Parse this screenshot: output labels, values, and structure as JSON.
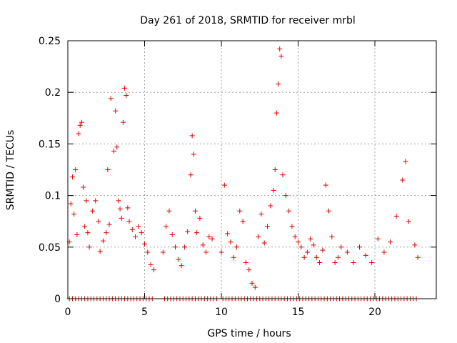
{
  "chart_data": {
    "type": "scatter",
    "title": "Day 261 of 2018, SRMTID for receiver mrbl",
    "xlabel": "GPS time / hours",
    "ylabel": "SRMTID / TECUs",
    "xlim": [
      0,
      24
    ],
    "ylim": [
      0,
      0.25
    ],
    "x_ticks": [
      0,
      5,
      10,
      15,
      20
    ],
    "x_tick_labels": [
      "0",
      "5",
      "10",
      "15",
      "20"
    ],
    "y_ticks": [
      0,
      0.05,
      0.1,
      0.15,
      0.2,
      0.25
    ],
    "y_tick_labels": [
      "0",
      "0.05",
      "0.1",
      "0.15",
      "0.2",
      "0.25"
    ],
    "grid": true,
    "marker": "+",
    "color": "#e00000",
    "series": [
      {
        "name": "SRMTID",
        "points": [
          [
            0.1,
            0.055
          ],
          [
            0.2,
            0.092
          ],
          [
            0.3,
            0.118
          ],
          [
            0.4,
            0.082
          ],
          [
            0.5,
            0.125
          ],
          [
            0.6,
            0.062
          ],
          [
            0.7,
            0.16
          ],
          [
            0.8,
            0.168
          ],
          [
            0.9,
            0.171
          ],
          [
            1.0,
            0.108
          ],
          [
            1.1,
            0.07
          ],
          [
            1.2,
            0.095
          ],
          [
            1.3,
            0.064
          ],
          [
            1.4,
            0.05
          ],
          [
            1.6,
            0.085
          ],
          [
            1.8,
            0.095
          ],
          [
            2.0,
            0.075
          ],
          [
            2.1,
            0.046
          ],
          [
            2.3,
            0.056
          ],
          [
            2.5,
            0.064
          ],
          [
            2.6,
            0.125
          ],
          [
            2.7,
            0.072
          ],
          [
            2.8,
            0.194
          ],
          [
            3.0,
            0.143
          ],
          [
            3.1,
            0.182
          ],
          [
            3.2,
            0.147
          ],
          [
            3.3,
            0.095
          ],
          [
            3.4,
            0.087
          ],
          [
            3.5,
            0.078
          ],
          [
            3.6,
            0.171
          ],
          [
            3.7,
            0.204
          ],
          [
            3.8,
            0.197
          ],
          [
            3.9,
            0.088
          ],
          [
            4.0,
            0.075
          ],
          [
            4.2,
            0.067
          ],
          [
            4.4,
            0.06
          ],
          [
            4.6,
            0.07
          ],
          [
            4.8,
            0.064
          ],
          [
            5.0,
            0.053
          ],
          [
            5.2,
            0.045
          ],
          [
            5.4,
            0.033
          ],
          [
            5.6,
            0.028
          ],
          [
            6.2,
            0.045
          ],
          [
            6.4,
            0.07
          ],
          [
            6.6,
            0.085
          ],
          [
            6.8,
            0.062
          ],
          [
            7.0,
            0.05
          ],
          [
            7.2,
            0.038
          ],
          [
            7.4,
            0.032
          ],
          [
            7.6,
            0.05
          ],
          [
            7.8,
            0.065
          ],
          [
            8.0,
            0.12
          ],
          [
            8.1,
            0.158
          ],
          [
            8.2,
            0.14
          ],
          [
            8.3,
            0.085
          ],
          [
            8.4,
            0.064
          ],
          [
            8.6,
            0.078
          ],
          [
            8.8,
            0.052
          ],
          [
            9.0,
            0.045
          ],
          [
            9.2,
            0.06
          ],
          [
            9.4,
            0.058
          ],
          [
            10.0,
            0.045
          ],
          [
            10.2,
            0.11
          ],
          [
            10.4,
            0.063
          ],
          [
            10.6,
            0.055
          ],
          [
            10.8,
            0.04
          ],
          [
            11.0,
            0.05
          ],
          [
            11.2,
            0.085
          ],
          [
            11.4,
            0.075
          ],
          [
            11.6,
            0.035
          ],
          [
            11.8,
            0.028
          ],
          [
            12.0,
            0.015
          ],
          [
            12.2,
            0.011
          ],
          [
            12.4,
            0.06
          ],
          [
            12.6,
            0.082
          ],
          [
            12.8,
            0.054
          ],
          [
            13.0,
            0.07
          ],
          [
            13.2,
            0.09
          ],
          [
            13.4,
            0.105
          ],
          [
            13.5,
            0.125
          ],
          [
            13.6,
            0.18
          ],
          [
            13.7,
            0.208
          ],
          [
            13.8,
            0.242
          ],
          [
            13.9,
            0.235
          ],
          [
            14.0,
            0.12
          ],
          [
            14.2,
            0.1
          ],
          [
            14.4,
            0.085
          ],
          [
            14.6,
            0.07
          ],
          [
            14.8,
            0.06
          ],
          [
            15.0,
            0.055
          ],
          [
            15.2,
            0.05
          ],
          [
            15.4,
            0.04
          ],
          [
            15.6,
            0.045
          ],
          [
            15.8,
            0.058
          ],
          [
            16.0,
            0.052
          ],
          [
            16.2,
            0.04
          ],
          [
            16.4,
            0.035
          ],
          [
            16.6,
            0.047
          ],
          [
            16.8,
            0.11
          ],
          [
            17.0,
            0.085
          ],
          [
            17.2,
            0.06
          ],
          [
            17.4,
            0.035
          ],
          [
            17.6,
            0.04
          ],
          [
            17.8,
            0.05
          ],
          [
            18.2,
            0.045
          ],
          [
            18.6,
            0.035
          ],
          [
            19.0,
            0.05
          ],
          [
            19.4,
            0.042
          ],
          [
            19.8,
            0.035
          ],
          [
            20.2,
            0.058
          ],
          [
            20.6,
            0.045
          ],
          [
            21.0,
            0.055
          ],
          [
            21.4,
            0.08
          ],
          [
            21.8,
            0.115
          ],
          [
            22.0,
            0.133
          ],
          [
            22.2,
            0.075
          ],
          [
            22.6,
            0.052
          ],
          [
            22.8,
            0.04
          ]
        ]
      }
    ],
    "zero_points": [
      0.1,
      0.3,
      0.5,
      0.7,
      0.9,
      1.1,
      1.3,
      1.5,
      1.7,
      1.9,
      2.1,
      2.3,
      2.5,
      2.7,
      2.9,
      3.1,
      3.3,
      3.5,
      3.7,
      3.9,
      4.1,
      4.3,
      4.5,
      4.7,
      4.9,
      5.1,
      5.3,
      5.5,
      6.3,
      6.5,
      6.7,
      6.9,
      7.1,
      7.3,
      7.5,
      7.7,
      7.9,
      8.1,
      8.3,
      8.5,
      8.7,
      8.9,
      9.1,
      9.3,
      9.5,
      9.7,
      10.1,
      10.3,
      10.5,
      10.7,
      10.9,
      11.1,
      11.3,
      11.5,
      11.7,
      11.9,
      12.1,
      12.3,
      12.5,
      12.7,
      12.9,
      13.1,
      13.3,
      13.5,
      13.7,
      13.9,
      14.1,
      14.3,
      14.5,
      14.7,
      14.9,
      15.1,
      15.3,
      15.5,
      15.7,
      15.9,
      16.1,
      16.3,
      16.5,
      16.7,
      16.9,
      17.1,
      17.3,
      17.5,
      17.7,
      17.9,
      18.1,
      18.3,
      18.5,
      18.7,
      18.9,
      19.1,
      19.3,
      19.5,
      19.7,
      19.9,
      20.1,
      20.3,
      20.5,
      20.7,
      20.9,
      21.1,
      21.3,
      21.5,
      21.7,
      21.9,
      22.1,
      22.3,
      22.5,
      22.7
    ]
  }
}
